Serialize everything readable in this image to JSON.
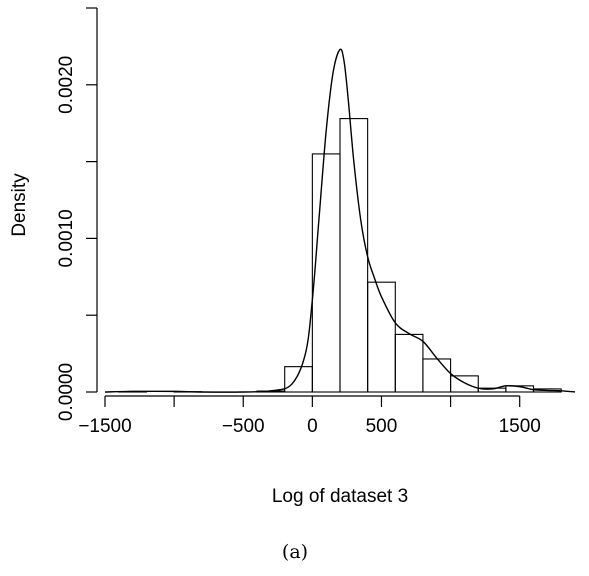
{
  "chart_data": {
    "type": "bar",
    "subtype": "histogram-with-density-curve",
    "title": "",
    "xlabel": "Log of dataset 3",
    "ylabel": "Density",
    "caption": "(a)",
    "xlim": [
      -1500,
      1900
    ],
    "ylim": [
      0,
      0.0025
    ],
    "x_ticks": [
      -1500,
      -1000,
      -500,
      0,
      500,
      1000,
      1500
    ],
    "x_tick_labels": [
      "−1500",
      "",
      "−500",
      "0",
      "500",
      "",
      "1500"
    ],
    "y_ticks": [
      0,
      0.0005,
      0.001,
      0.0015,
      0.002
    ],
    "y_tick_labels": [
      "0.0000",
      "",
      "0.0010",
      "",
      "0.0020"
    ],
    "bin_width": 200,
    "bins": [
      {
        "start": -1400,
        "end": -1200,
        "density": 2e-06
      },
      {
        "start": -1200,
        "end": -1000,
        "density": 0.0
      },
      {
        "start": -1000,
        "end": -800,
        "density": 2e-06
      },
      {
        "start": -800,
        "end": -600,
        "density": 0.0
      },
      {
        "start": -600,
        "end": -400,
        "density": 0.0
      },
      {
        "start": -400,
        "end": -200,
        "density": 6e-06
      },
      {
        "start": -200,
        "end": 0,
        "density": 0.000165
      },
      {
        "start": 0,
        "end": 200,
        "density": 0.00155
      },
      {
        "start": 200,
        "end": 400,
        "density": 0.00178
      },
      {
        "start": 400,
        "end": 600,
        "density": 0.000715
      },
      {
        "start": 600,
        "end": 800,
        "density": 0.000375
      },
      {
        "start": 800,
        "end": 1000,
        "density": 0.000215
      },
      {
        "start": 1000,
        "end": 1200,
        "density": 0.000105
      },
      {
        "start": 1200,
        "end": 1400,
        "density": 2.5e-05
      },
      {
        "start": 1400,
        "end": 1600,
        "density": 4e-05
      },
      {
        "start": 1600,
        "end": 1800,
        "density": 2e-05
      }
    ],
    "density_curve": {
      "x": [
        -1500,
        -1300,
        -1000,
        -800,
        -500,
        -300,
        -150,
        -50,
        0,
        50,
        100,
        150,
        200,
        230,
        260,
        300,
        350,
        400,
        450,
        500,
        600,
        700,
        800,
        900,
        1000,
        1100,
        1200,
        1300,
        1400,
        1500,
        1600,
        1700,
        1800,
        1900
      ],
      "y": [
        0.0,
        4e-06,
        4e-06,
        0.0,
        0.0,
        8e-06,
        5e-05,
        0.00025,
        0.0006,
        0.00115,
        0.0017,
        0.00208,
        0.00223,
        0.00215,
        0.0019,
        0.0015,
        0.00112,
        0.00088,
        0.00074,
        0.00062,
        0.00045,
        0.00038,
        0.00033,
        0.00022,
        0.00012,
        6e-05,
        2.5e-05,
        2e-05,
        4e-05,
        3.5e-05,
        1.5e-05,
        1e-05,
        8e-06,
        0.0
      ]
    }
  }
}
